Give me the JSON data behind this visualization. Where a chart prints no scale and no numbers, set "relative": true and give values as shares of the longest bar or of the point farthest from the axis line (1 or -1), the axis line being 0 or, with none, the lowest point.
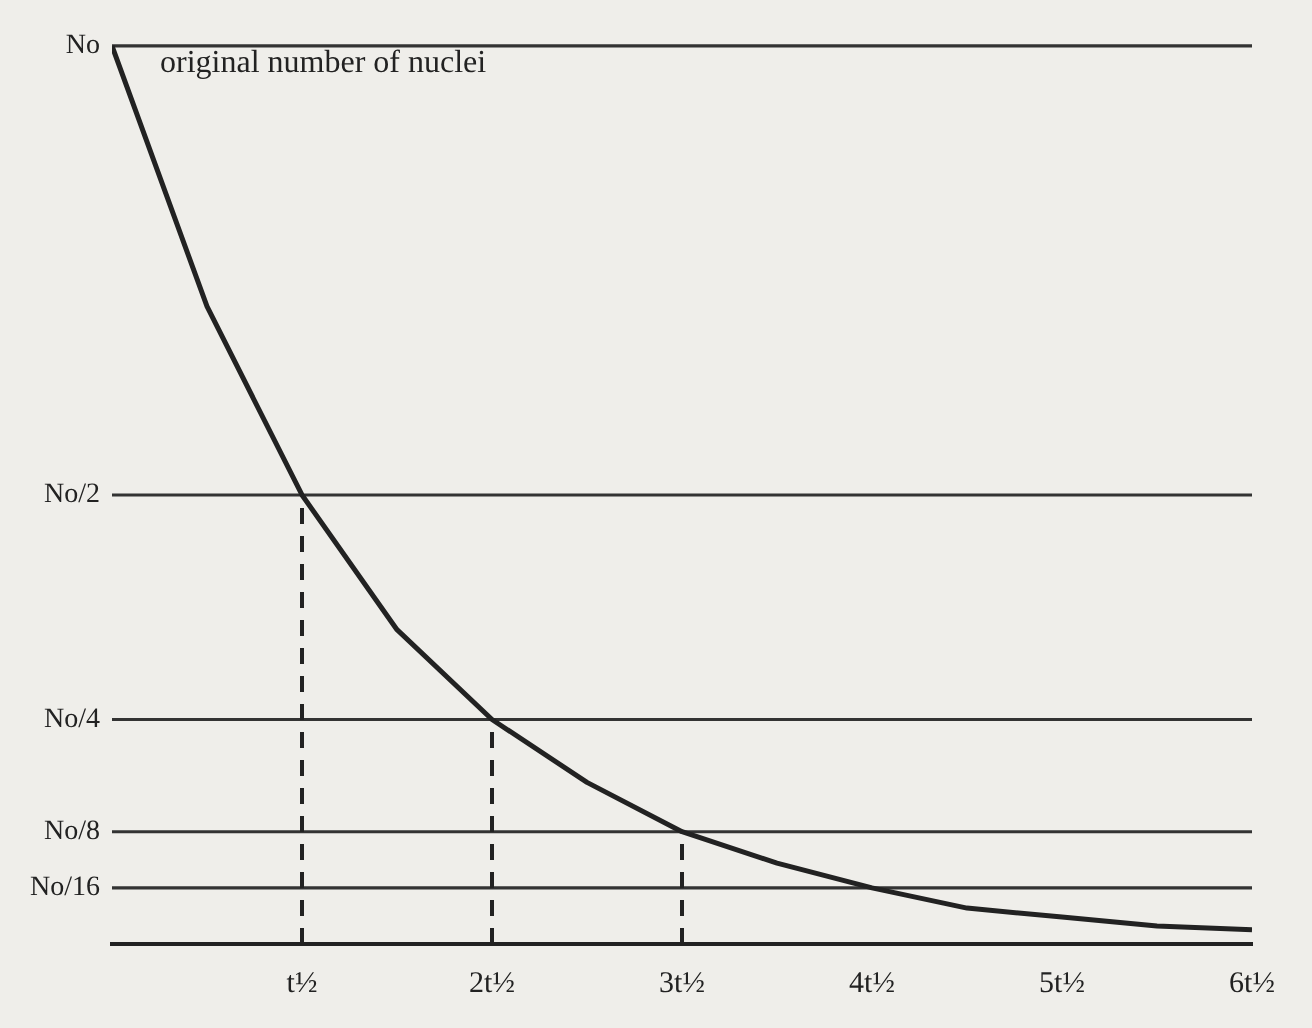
{
  "chart_data": {
    "type": "line",
    "relative": true,
    "annotations": [
      "original number of nuclei"
    ],
    "x": [
      0,
      0.5,
      1,
      1.5,
      2,
      2.5,
      3,
      3.5,
      4,
      4.5,
      5,
      5.5,
      6
    ],
    "series": [
      {
        "color": "#222222",
        "values": [
          1,
          0.71,
          0.5,
          0.35,
          0.25,
          0.18,
          0.125,
          0.09,
          0.0625,
          0.04,
          0.03,
          0.02,
          0.016
        ]
      }
    ],
    "xlim": [
      0,
      6
    ],
    "xticks": [
      {
        "value": 1,
        "label": "t½"
      },
      {
        "value": 2,
        "label": "2t½"
      },
      {
        "value": 3,
        "label": "3t½"
      },
      {
        "value": 4,
        "label": "4t½"
      },
      {
        "value": 5,
        "label": "5t½"
      },
      {
        "value": 6,
        "label": "6t½"
      }
    ],
    "ref_lines": [
      {
        "axis": "y",
        "value": 1,
        "label": "No",
        "color": "#333333"
      },
      {
        "axis": "y",
        "value": 0.5,
        "label": "No/2",
        "color": "#333333"
      },
      {
        "axis": "y",
        "value": 0.25,
        "label": "No/4",
        "color": "#333333"
      },
      {
        "axis": "y",
        "value": 0.125,
        "label": "No/8",
        "color": "#333333"
      },
      {
        "axis": "y",
        "value": 0.0625,
        "label": "No/16",
        "color": "#333333"
      },
      {
        "axis": "x",
        "value": 1,
        "line_style": "dashed",
        "color": "#222222"
      },
      {
        "axis": "x",
        "value": 2,
        "line_style": "dashed",
        "color": "#222222"
      },
      {
        "axis": "x",
        "value": 3,
        "line_style": "dashed",
        "color": "#222222"
      }
    ],
    "marker": "none",
    "line_style": "solid"
  }
}
